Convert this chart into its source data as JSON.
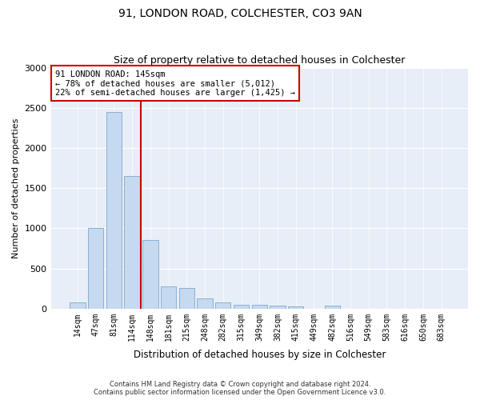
{
  "title": "91, LONDON ROAD, COLCHESTER, CO3 9AN",
  "subtitle": "Size of property relative to detached houses in Colchester",
  "xlabel": "Distribution of detached houses by size in Colchester",
  "ylabel": "Number of detached properties",
  "categories": [
    "14sqm",
    "47sqm",
    "81sqm",
    "114sqm",
    "148sqm",
    "181sqm",
    "215sqm",
    "248sqm",
    "282sqm",
    "315sqm",
    "349sqm",
    "382sqm",
    "415sqm",
    "449sqm",
    "482sqm",
    "516sqm",
    "549sqm",
    "583sqm",
    "616sqm",
    "650sqm",
    "683sqm"
  ],
  "values": [
    75,
    1000,
    2450,
    1650,
    850,
    280,
    260,
    130,
    80,
    50,
    50,
    40,
    30,
    0,
    40,
    0,
    0,
    0,
    0,
    0,
    0
  ],
  "bar_color": "#c5d9f0",
  "bar_edge_color": "#7da9d0",
  "vline_x": 3.5,
  "vline_color": "#cc0000",
  "annotation_text": "91 LONDON ROAD: 145sqm\n← 78% of detached houses are smaller (5,012)\n22% of semi-detached houses are larger (1,425) →",
  "annotation_box_color": "#ffffff",
  "annotation_box_edge_color": "#cc0000",
  "ylim": [
    0,
    3000
  ],
  "yticks": [
    0,
    500,
    1000,
    1500,
    2000,
    2500,
    3000
  ],
  "background_color": "#e8eef7",
  "fig_background_color": "#ffffff",
  "footer_line1": "Contains HM Land Registry data © Crown copyright and database right 2024.",
  "footer_line2": "Contains public sector information licensed under the Open Government Licence v3.0."
}
